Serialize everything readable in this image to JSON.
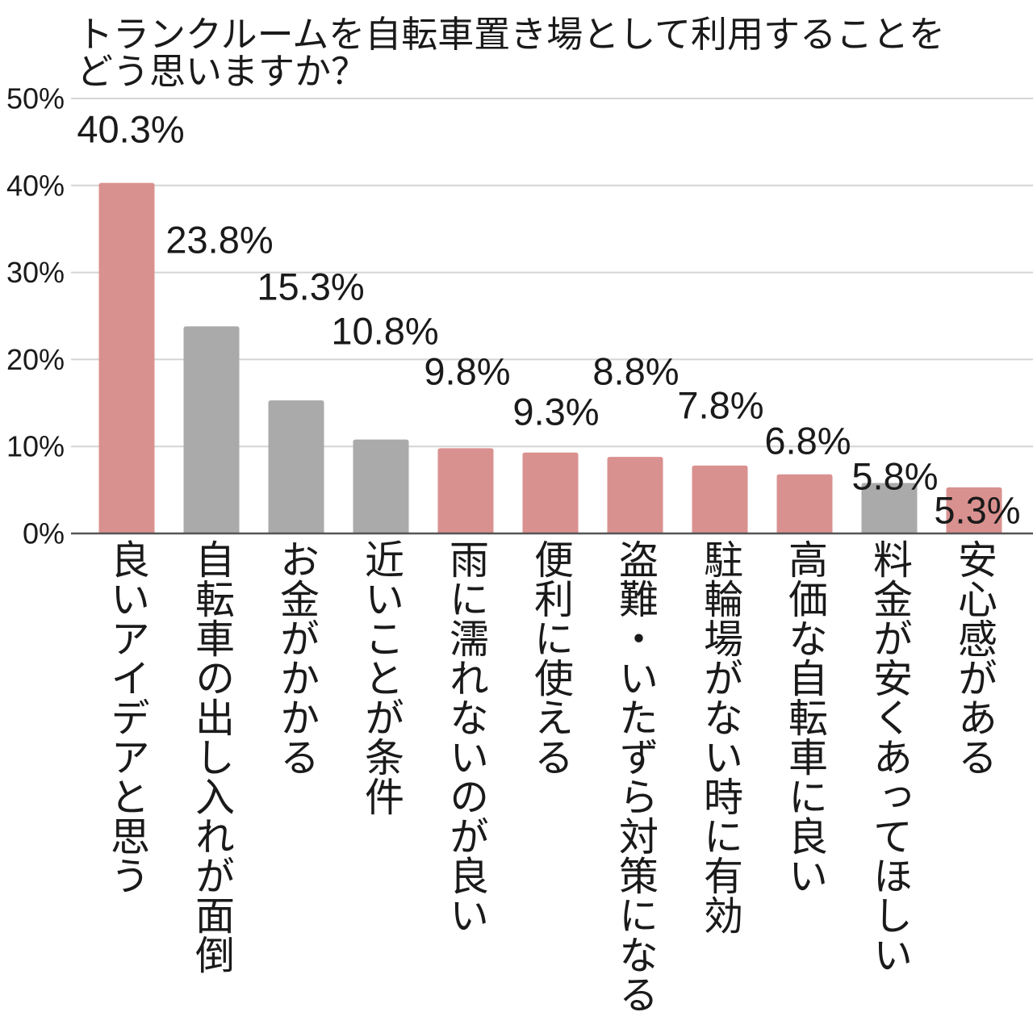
{
  "chart_data": {
    "type": "bar",
    "title": "トランクルームを自転車置き場として利用することを\nどう思いますか？",
    "xlabel": "",
    "ylabel": "",
    "categories": [
      "良いアイデアと思う",
      "自転車の出し入れが面倒",
      "お金がかかる",
      "近いことが条件",
      "雨に濡れないのが良い",
      "便利に使える",
      "盗難・いたずら対策になる",
      "駐輪場がない時に有効",
      "高価な自転車に良い",
      "料金が安くあってほしい",
      "安心感がある"
    ],
    "values": [
      40.3,
      23.8,
      15.3,
      10.8,
      9.8,
      9.3,
      8.8,
      7.8,
      6.8,
      5.8,
      5.3
    ],
    "value_labels": [
      "40.3%",
      "23.8%",
      "15.3%",
      "10.8%",
      "9.8%",
      "9.3%",
      "8.8%",
      "7.8%",
      "6.8%",
      "5.8%",
      "5.3%"
    ],
    "bar_colors": [
      "#d9918f",
      "#aaaaaa",
      "#aaaaaa",
      "#aaaaaa",
      "#d9918f",
      "#d9918f",
      "#d9918f",
      "#d9918f",
      "#d9918f",
      "#aaaaaa",
      "#d9918f"
    ],
    "ylim": [
      0,
      50
    ],
    "y_ticks": [
      0,
      10,
      20,
      30,
      40,
      50
    ],
    "y_tick_labels": [
      "0%",
      "10%",
      "20%",
      "30%",
      "40%",
      "50%"
    ],
    "grid": true
  },
  "colors": {
    "positive_bar": "#d9918f",
    "neutral_bar": "#aaaaaa",
    "gridline": "#d4d4d4",
    "axis": "#555555"
  }
}
